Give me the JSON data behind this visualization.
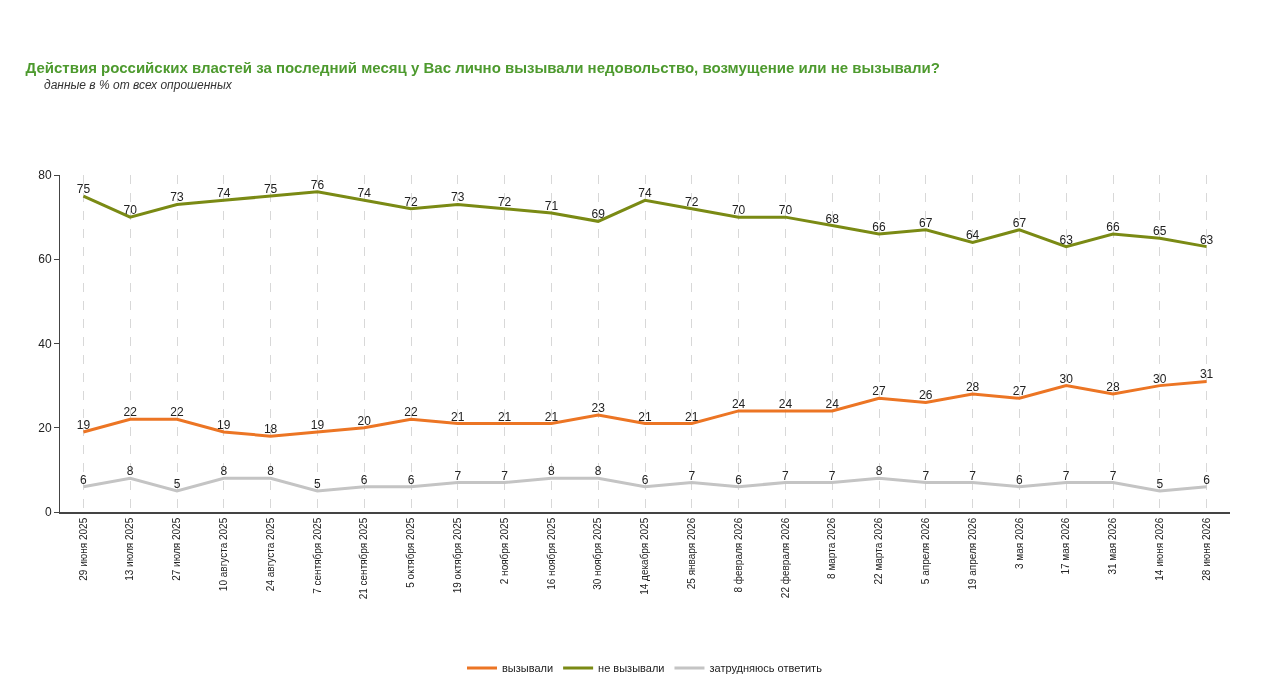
{
  "chart_data": {
    "type": "line",
    "title": "Действия российских властей за последний месяц у Вас лично вызывали недовольство, возмущение или не вызывали?",
    "subtitle": "данные в % от всех опрошенных",
    "categories": [
      "29 июня 2025",
      "13 июля 2025",
      "27 июля 2025",
      "10 августа 2025",
      "24 августа 2025",
      "7 сентября 2025",
      "21 сентября 2025",
      "5 октября 2025",
      "19 октября 2025",
      "2 ноября 2025",
      "16 ноября 2025",
      "30 ноября 2025",
      "14 декабря 2025",
      "25 января 2026",
      "8 февраля 2026",
      "22 февраля 2026",
      "8 марта 2026",
      "22 марта 2026",
      "5 апреля 2026",
      "19 апреля 2026",
      "3 мая 2026",
      "17 мая 2026",
      "31 мая 2026",
      "14 июня 2026",
      "28 июня 2026"
    ],
    "series": [
      {
        "name": "вызывали",
        "color": "#ec7524",
        "values": [
          19,
          22,
          22,
          19,
          18,
          19,
          20,
          22,
          21,
          21,
          21,
          23,
          21,
          21,
          24,
          24,
          24,
          27,
          26,
          28,
          27,
          30,
          28,
          30,
          31
        ]
      },
      {
        "name": "не вызывали",
        "color": "#7a8a14",
        "values": [
          75,
          70,
          73,
          74,
          75,
          76,
          74,
          72,
          73,
          72,
          71,
          69,
          74,
          72,
          70,
          70,
          68,
          66,
          67,
          64,
          67,
          63,
          66,
          65,
          63
        ]
      },
      {
        "name": "затрудняюсь ответить",
        "color": "#c4c4c4",
        "values": [
          6,
          8,
          5,
          8,
          8,
          5,
          6,
          6,
          7,
          7,
          8,
          8,
          6,
          7,
          6,
          7,
          7,
          8,
          7,
          7,
          6,
          7,
          7,
          5,
          6
        ]
      }
    ],
    "ylim": [
      0,
      80
    ],
    "yticks": [
      0,
      20,
      40,
      60,
      80
    ],
    "grid": "x",
    "legend": "bottom",
    "data_labels": true,
    "marker": "none",
    "line_style": "solid"
  }
}
